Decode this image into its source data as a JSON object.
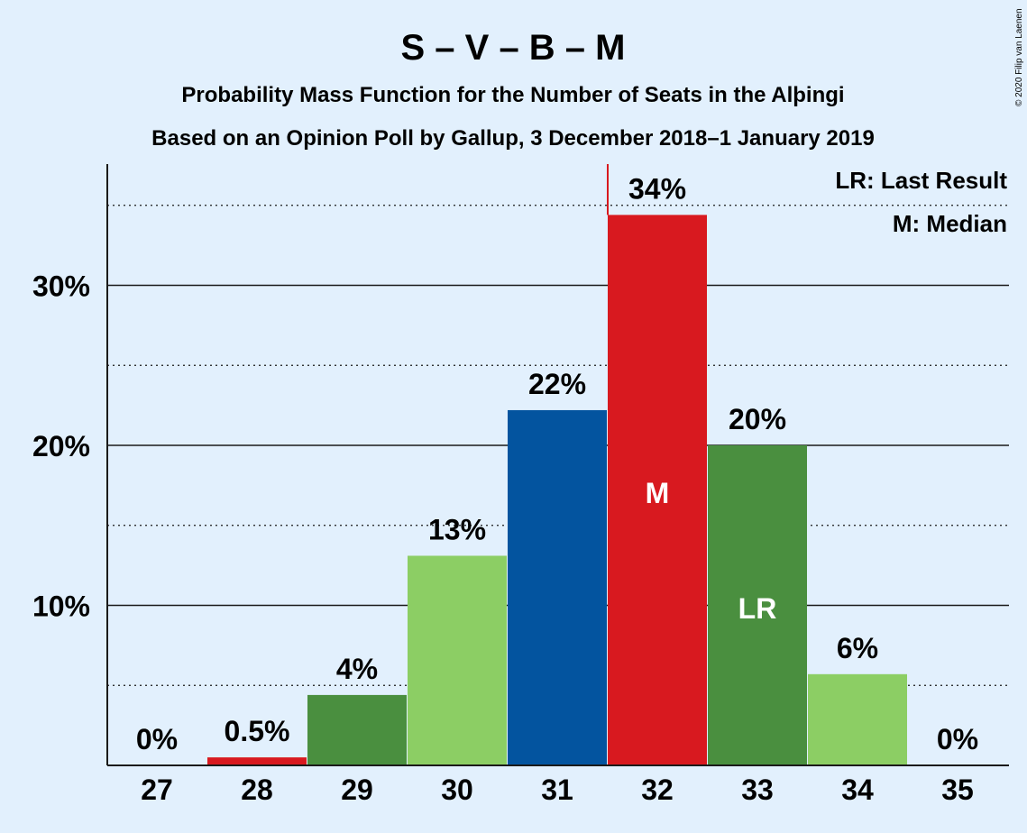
{
  "title": "S – V – B – M",
  "subtitle1": "Probability Mass Function for the Number of Seats in the Alþingi",
  "subtitle2": "Based on an Opinion Poll by Gallup, 3 December 2018–1 January 2019",
  "copyright": "© 2020 Filip van Laenen",
  "legend": {
    "last_result": "LR: Last Result",
    "median": "M: Median"
  },
  "markers": {
    "median_letter": "M",
    "last_result_letter": "LR"
  },
  "colors": {
    "background": "#e2f0fd",
    "red": "#d8191f",
    "dark_green": "#4a8f3f",
    "light_green": "#8cce64",
    "blue": "#03549f",
    "median_line": "#d8191f"
  },
  "chart_data": {
    "type": "bar",
    "categories": [
      "27",
      "28",
      "29",
      "30",
      "31",
      "32",
      "33",
      "34",
      "35"
    ],
    "values": [
      0,
      0.5,
      4.4,
      13.1,
      22.2,
      34.4,
      20.0,
      5.7,
      0
    ],
    "data_labels": [
      "0%",
      "0.5%",
      "4%",
      "13%",
      "22%",
      "34%",
      "20%",
      "6%",
      "0%"
    ],
    "bar_colors": [
      "#d8191f",
      "#d8191f",
      "#4a8f3f",
      "#8cce64",
      "#03549f",
      "#d8191f",
      "#4a8f3f",
      "#8cce64",
      "#8cce64"
    ],
    "yticks": [
      10,
      20,
      30
    ],
    "ytick_labels": [
      "10%",
      "20%",
      "30%"
    ],
    "ylim": [
      0,
      37.5
    ],
    "median_seat": "32",
    "last_result_seat": "33",
    "grid": "major solid at 10% steps, minor dotted at 5% steps"
  }
}
